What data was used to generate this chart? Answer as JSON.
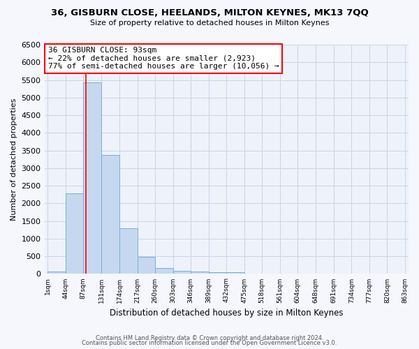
{
  "title": "36, GISBURN CLOSE, HEELANDS, MILTON KEYNES, MK13 7QQ",
  "subtitle": "Size of property relative to detached houses in Milton Keynes",
  "xlabel": "Distribution of detached houses by size in Milton Keynes",
  "ylabel": "Number of detached properties",
  "footer_line1": "Contains HM Land Registry data © Crown copyright and database right 2024.",
  "footer_line2": "Contains public sector information licensed under the Open Government Licence v3.0.",
  "bar_edges": [
    1,
    44,
    87,
    131,
    174,
    217,
    260,
    303,
    346,
    389,
    432,
    475,
    518,
    561,
    604,
    648,
    691,
    734,
    777,
    820,
    863
  ],
  "bar_heights": [
    75,
    2280,
    5440,
    3380,
    1290,
    480,
    165,
    90,
    75,
    55,
    45,
    0,
    0,
    0,
    0,
    0,
    0,
    0,
    0,
    0
  ],
  "bar_color": "#c5d8f0",
  "bar_edge_color": "#7aafd4",
  "grid_color": "#c8d4e8",
  "annotation_box_color": "white",
  "annotation_box_edgecolor": "red",
  "annotation_title": "36 GISBURN CLOSE: 93sqm",
  "annotation_line1": "← 22% of detached houses are smaller (2,923)",
  "annotation_line2": "77% of semi-detached houses are larger (10,056) →",
  "vline_x": 93,
  "vline_color": "red",
  "ylim": [
    0,
    6500
  ],
  "yticks": [
    0,
    500,
    1000,
    1500,
    2000,
    2500,
    3000,
    3500,
    4000,
    4500,
    5000,
    5500,
    6000,
    6500
  ],
  "background_color": "#f5f7fd",
  "axes_background": "#eef2fa"
}
